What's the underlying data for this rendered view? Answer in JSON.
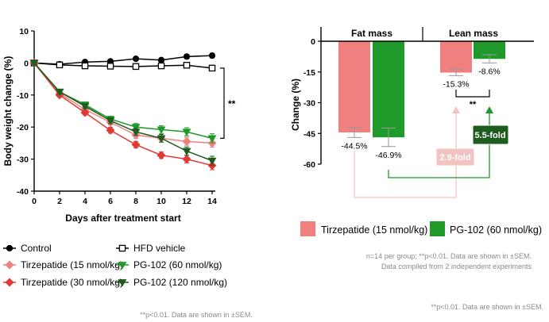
{
  "colors": {
    "black": "#000000",
    "pink": "#f08080",
    "red": "#e03a35",
    "green": "#1f9a2a",
    "darkgreen": "#1f5c1f",
    "lightpink": "#f3c3c2",
    "lightgreen": "#a8d8a8",
    "footnote": "#8a8a8a"
  },
  "chart_data": [
    {
      "type": "line",
      "title": "",
      "xlabel": "Days after treatment start",
      "ylabel": "Body weight change (%)",
      "xlim": [
        0,
        14
      ],
      "ylim": [
        -40,
        10
      ],
      "x": [
        0,
        2,
        4,
        6,
        8,
        10,
        12,
        14
      ],
      "xticks": [
        "0",
        "2",
        "4",
        "6",
        "8",
        "10",
        "12",
        "14"
      ],
      "yticks": [
        "10",
        "0",
        "-10",
        "-20",
        "-30",
        "-40"
      ],
      "series": [
        {
          "name": "Control",
          "marker": "filled-circle",
          "color": "black",
          "values": [
            0,
            -0.4,
            0.3,
            0.5,
            1.3,
            0.9,
            2.0,
            2.3
          ],
          "err": [
            0,
            0.4,
            0.4,
            0.5,
            0.5,
            0.6,
            0.6,
            0.7
          ]
        },
        {
          "name": "HFD vehicle",
          "marker": "open-square",
          "color": "black",
          "values": [
            0,
            -0.6,
            -0.9,
            -1.0,
            -1.1,
            -0.9,
            -0.7,
            -1.6
          ],
          "err": [
            0,
            0.4,
            0.4,
            0.5,
            0.5,
            0.6,
            0.6,
            0.7
          ]
        },
        {
          "name": "Tirzepatide (15 nmol/kg)",
          "marker": "diamond",
          "color": "pink",
          "values": [
            0,
            -9.5,
            -14.5,
            -18.5,
            -22.5,
            -23.5,
            -24.5,
            -25.0
          ],
          "err": [
            0,
            0.6,
            0.7,
            0.9,
            1.0,
            1.2,
            1.2,
            1.3
          ]
        },
        {
          "name": "Tirzepatide (30 nmol/kg)",
          "marker": "diamond",
          "color": "red",
          "values": [
            0,
            -10.0,
            -15.5,
            -21.0,
            -25.5,
            -28.8,
            -30.0,
            -32.0
          ],
          "err": [
            0,
            0.6,
            0.7,
            0.9,
            1.0,
            1.0,
            1.2,
            1.3
          ]
        },
        {
          "name": "PG-102 (60 nmol/kg)",
          "marker": "triangle-down",
          "color": "green",
          "values": [
            0,
            -9.0,
            -13.0,
            -17.5,
            -20.0,
            -20.8,
            -21.5,
            -23.5
          ],
          "err": [
            0,
            0.6,
            0.7,
            0.9,
            1.1,
            1.2,
            1.3,
            1.4
          ]
        },
        {
          "name": "PG-102 (120 nmol/kg)",
          "marker": "triangle-down",
          "color": "darkgreen",
          "values": [
            0,
            -9.0,
            -13.5,
            -18.0,
            -21.5,
            -23.5,
            -27.5,
            -30.5
          ],
          "err": [
            0,
            0.6,
            0.7,
            0.9,
            1.1,
            1.2,
            1.3,
            1.4
          ]
        }
      ],
      "significance": "**",
      "legend": {
        "position": "bottom",
        "order": [
          "Control",
          "HFD vehicle",
          "Tirzepatide (15 nmol/kg)",
          "PG-102 (60 nmol/kg)",
          "Tirzepatide (30 nmol/kg)",
          "PG-102 (120 nmol/kg)"
        ]
      },
      "footnote": "**p<0.01. Data are shown in ±SEM."
    },
    {
      "type": "bar",
      "ylabel": "Change  (%)",
      "ylim": [
        -60,
        0
      ],
      "yticks": [
        "0",
        "-15",
        "-30",
        "-45",
        "-60"
      ],
      "categories": [
        "Fat mass",
        "Lean mass"
      ],
      "series": [
        {
          "name": "Tirzepatide (15 nmol/kg)",
          "color": "pink",
          "values": [
            -44.5,
            -15.3
          ],
          "err": [
            2.5,
            1.5
          ]
        },
        {
          "name": "PG-102 (60 nmol/kg)",
          "color": "green",
          "values": [
            -46.9,
            -8.6
          ],
          "err": [
            4.5,
            2.0
          ]
        }
      ],
      "value_labels": [
        [
          "-44.5%",
          "-15.3%"
        ],
        [
          "-46.9%",
          "-8.6%"
        ]
      ],
      "significance": "**",
      "annotations": [
        {
          "text": "2.9-fold",
          "color": "lightpink"
        },
        {
          "text": "5.5-fold",
          "color": "darkgreen"
        }
      ],
      "legend": {
        "position": "bottom"
      },
      "notes": [
        "n=14 per group; **p<0.01. Data are shown in ±SEM.",
        "Data compiled from 2 independent experiments"
      ],
      "footnote": "**p<0.01. Data are shown in ±SEM."
    }
  ]
}
